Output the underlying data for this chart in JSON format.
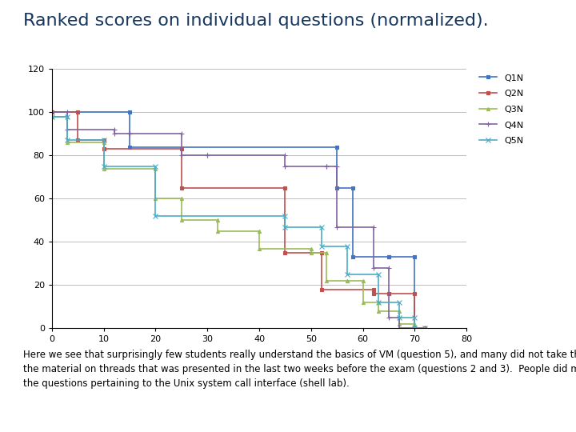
{
  "title": "Ranked scores on individual questions (normalized).",
  "subtitle": "Here we see that surprisingly few students really understand the basics of VM (question 5), and many did not take the time to study\nthe material on threads that was presented in the last two weeks before the exam (questions 2 and 3).  People did much better on\nthe questions pertaining to the Unix system call interface (shell lab).",
  "xlim": [
    0,
    80
  ],
  "ylim": [
    0,
    120
  ],
  "xticks": [
    0,
    10,
    20,
    30,
    40,
    50,
    60,
    70,
    80
  ],
  "yticks": [
    0,
    20,
    40,
    60,
    80,
    100,
    120
  ],
  "series": [
    {
      "name": "Q1N",
      "color": "#4472C4",
      "marker": "s",
      "markersize": 3,
      "x": [
        0,
        15,
        15,
        55,
        55,
        58,
        58,
        65,
        65,
        70,
        70,
        72
      ],
      "y": [
        100,
        100,
        84,
        84,
        65,
        65,
        33,
        33,
        33,
        33,
        0,
        0
      ]
    },
    {
      "name": "Q2N",
      "color": "#C0504D",
      "marker": "s",
      "markersize": 3,
      "x": [
        0,
        5,
        5,
        10,
        10,
        25,
        25,
        45,
        45,
        52,
        52,
        62,
        62,
        65,
        65,
        70,
        70,
        72
      ],
      "y": [
        100,
        100,
        87,
        87,
        83,
        83,
        65,
        65,
        35,
        35,
        18,
        18,
        16,
        16,
        16,
        16,
        0,
        0
      ]
    },
    {
      "name": "Q3N",
      "color": "#9BBB59",
      "marker": "^",
      "markersize": 3,
      "x": [
        0,
        3,
        3,
        10,
        10,
        20,
        20,
        25,
        25,
        32,
        32,
        40,
        40,
        50,
        50,
        53,
        53,
        57,
        57,
        60,
        60,
        63,
        63,
        67,
        67,
        70,
        70,
        72
      ],
      "y": [
        98,
        98,
        86,
        86,
        74,
        74,
        60,
        60,
        50,
        50,
        45,
        45,
        37,
        37,
        35,
        35,
        22,
        22,
        22,
        22,
        12,
        12,
        8,
        8,
        2,
        2,
        0,
        0
      ]
    },
    {
      "name": "Q4N",
      "color": "#8064A2",
      "marker": "+",
      "markersize": 4,
      "x": [
        0,
        3,
        3,
        12,
        12,
        15,
        15,
        25,
        25,
        30,
        30,
        45,
        45,
        53,
        53,
        55,
        55,
        62,
        62,
        65,
        65,
        67,
        67,
        70,
        70,
        72
      ],
      "y": [
        100,
        100,
        92,
        92,
        90,
        90,
        90,
        90,
        80,
        80,
        80,
        80,
        75,
        75,
        75,
        75,
        47,
        47,
        28,
        28,
        5,
        5,
        0,
        0,
        0,
        0
      ]
    },
    {
      "name": "Q5N",
      "color": "#4BACC6",
      "marker": "x",
      "markersize": 4,
      "x": [
        0,
        3,
        3,
        10,
        10,
        20,
        20,
        45,
        45,
        52,
        52,
        57,
        57,
        63,
        63,
        67,
        67,
        70,
        70,
        72
      ],
      "y": [
        98,
        98,
        87,
        87,
        75,
        75,
        52,
        52,
        47,
        47,
        38,
        38,
        25,
        25,
        12,
        12,
        5,
        5,
        0,
        0
      ]
    }
  ],
  "background_color": "#FFFFFF",
  "plot_bg": "#FFFFFF",
  "grid_color": "#BFBFBF",
  "title_color": "#17375E",
  "title_fontsize": 16,
  "subtitle_fontsize": 8.5,
  "axis_fontsize": 8,
  "legend_fontsize": 8
}
